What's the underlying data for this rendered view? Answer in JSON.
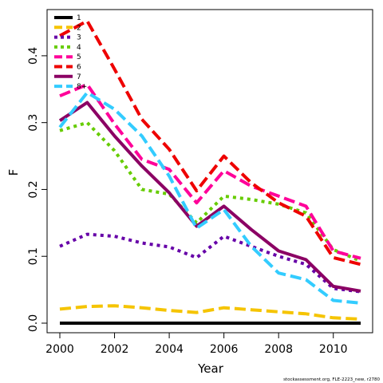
{
  "chart_data": {
    "type": "line",
    "title": "",
    "xlabel": "Year",
    "ylabel": "F",
    "xlim": [
      2000,
      2011
    ],
    "ylim": [
      0,
      0.45
    ],
    "x_ticks": [
      "2000",
      "2002",
      "2004",
      "2006",
      "2008",
      "2010"
    ],
    "y_ticks": [
      "0.0",
      "0.1",
      "0.2",
      "0.3",
      "0.4"
    ],
    "legend_position": "top-left",
    "grid": false,
    "x": [
      2000,
      2001,
      2002,
      2003,
      2004,
      2005,
      2006,
      2007,
      2008,
      2009,
      2010,
      2011
    ],
    "series": [
      {
        "name": "1",
        "color": "#000000",
        "dash": "solid",
        "values": [
          0.0,
          0.0,
          0.0,
          0.0,
          0.0,
          0.0,
          0.0,
          0.0,
          0.0,
          0.0,
          0.0,
          0.0
        ]
      },
      {
        "name": "2",
        "color": "#F5C400",
        "dash": "long",
        "values": [
          0.021,
          0.025,
          0.026,
          0.023,
          0.019,
          0.016,
          0.023,
          0.02,
          0.017,
          0.014,
          0.008,
          0.006
        ]
      },
      {
        "name": "3",
        "color": "#6600A8",
        "dash": "dot",
        "values": [
          0.115,
          0.133,
          0.13,
          0.12,
          0.114,
          0.098,
          0.13,
          0.115,
          0.1,
          0.088,
          0.052,
          0.047
        ]
      },
      {
        "name": "4",
        "color": "#66CC00",
        "dash": "dot",
        "values": [
          0.288,
          0.3,
          0.258,
          0.2,
          0.193,
          0.15,
          0.19,
          0.185,
          0.178,
          0.165,
          0.11,
          0.093
        ]
      },
      {
        "name": "5",
        "color": "#FF0099",
        "dash": "long",
        "values": [
          0.34,
          0.357,
          0.298,
          0.245,
          0.23,
          0.18,
          0.228,
          0.205,
          0.19,
          0.175,
          0.108,
          0.097
        ]
      },
      {
        "name": "6",
        "color": "#EE0000",
        "dash": "long",
        "values": [
          0.43,
          0.452,
          0.38,
          0.305,
          0.26,
          0.198,
          0.25,
          0.21,
          0.18,
          0.16,
          0.098,
          0.088
        ]
      },
      {
        "name": "7",
        "color": "#8B0064",
        "dash": "solid",
        "values": [
          0.303,
          0.33,
          0.28,
          0.235,
          0.195,
          0.145,
          0.175,
          0.14,
          0.108,
          0.095,
          0.055,
          0.048
        ]
      },
      {
        "name": "8+",
        "color": "#33CCFF",
        "dash": "long",
        "values": [
          0.293,
          0.345,
          0.32,
          0.28,
          0.22,
          0.142,
          0.17,
          0.115,
          0.075,
          0.065,
          0.034,
          0.03
        ]
      }
    ]
  },
  "credit": "stockassessment.org, FLE-2223_new, r2780"
}
